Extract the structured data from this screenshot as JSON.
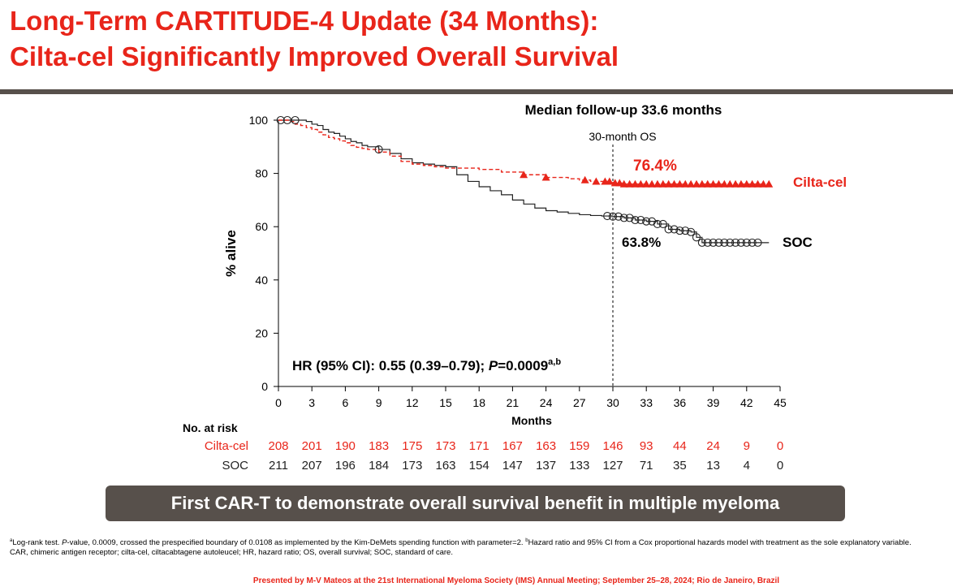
{
  "title": {
    "line1": "Long-Term CARTITUDE-4 Update (34 Months):",
    "line2": "Cilta-cel Significantly Improved Overall Survival"
  },
  "chart_data": {
    "type": "line",
    "title": "Median follow-up 33.6 months",
    "xlabel": "Months",
    "ylabel": "% alive",
    "xlim": [
      0,
      45
    ],
    "ylim": [
      0,
      100
    ],
    "x_ticks": [
      0,
      3,
      6,
      9,
      12,
      15,
      18,
      21,
      24,
      27,
      30,
      33,
      36,
      39,
      42,
      45
    ],
    "y_ticks": [
      0,
      20,
      40,
      60,
      80,
      100
    ],
    "reference_line": {
      "x": 30,
      "label": "30-month OS"
    },
    "hr_text": {
      "prefix": "HR (95% CI): 0.55 (0.39–0.79); ",
      "p_label": "P",
      "p_value": "=0.0009",
      "sup": "a,b"
    },
    "series": [
      {
        "name": "Cilta-cel",
        "color": "#e8251a",
        "line_style": "dashed",
        "marker": "triangle",
        "annotation": "76.4%",
        "x": [
          0,
          1,
          1.5,
          2,
          2.5,
          3,
          3.5,
          4,
          4.5,
          5,
          5.5,
          6,
          6.5,
          7,
          7.5,
          8,
          9,
          10,
          11,
          12,
          13,
          14,
          15,
          16,
          18,
          20,
          22,
          24,
          26,
          27,
          28,
          30,
          31,
          33,
          35,
          37,
          39,
          41,
          43,
          44
        ],
        "y": [
          100,
          99.5,
          98.5,
          98,
          97.2,
          96.5,
          95.5,
          94.5,
          93.5,
          93,
          92.2,
          91.5,
          90.5,
          89.8,
          89.4,
          89,
          88,
          86.5,
          84.5,
          83.5,
          83,
          82.5,
          82,
          82,
          81.5,
          80.5,
          79.5,
          78.5,
          78,
          77.5,
          77,
          76.4,
          76,
          76,
          76,
          76,
          76,
          76,
          76,
          76
        ],
        "censored_x": [
          22,
          24,
          27.5,
          28.5,
          29.3,
          29.7,
          30.2,
          30.6,
          31,
          31.5,
          32,
          32.5,
          33,
          33.5,
          34,
          34.5,
          35,
          35.5,
          36,
          36.5,
          37,
          37.5,
          38,
          38.5,
          39,
          39.5,
          40,
          40.5,
          41,
          41.5,
          42,
          42.5,
          43,
          43.5,
          44
        ]
      },
      {
        "name": "SOC",
        "color": "#222222",
        "line_style": "solid",
        "marker": "circle",
        "annotation": "63.8%",
        "x": [
          0,
          1,
          2,
          2.5,
          3,
          3.5,
          4,
          4.5,
          5,
          5.5,
          6,
          6.5,
          7,
          7.5,
          8,
          9,
          10,
          11,
          12,
          13,
          14,
          15,
          16,
          17,
          18,
          19,
          20,
          21,
          22,
          23,
          24,
          25,
          26,
          27,
          28,
          29,
          30,
          31,
          32,
          33,
          34,
          35,
          36,
          37,
          37.5,
          38,
          39,
          40,
          41,
          42,
          43,
          44
        ],
        "y": [
          100,
          100,
          100,
          99.5,
          98.5,
          98,
          96.5,
          95.5,
          95,
          94,
          93,
          92,
          91.5,
          90.5,
          90,
          89,
          87.5,
          85.5,
          84,
          83.5,
          83,
          82.5,
          79.5,
          77,
          75,
          73.5,
          72,
          70,
          68.5,
          67,
          66,
          65.5,
          65,
          64.5,
          64.2,
          64,
          63.8,
          63.3,
          62.5,
          62,
          61,
          59,
          58.5,
          58,
          56,
          54,
          54,
          54,
          54,
          54,
          54,
          54
        ],
        "censored_x": [
          0.2,
          0.8,
          1.5,
          9,
          29.5,
          30,
          30.5,
          31,
          31.5,
          32,
          32.5,
          33,
          33.5,
          34,
          34.5,
          35,
          35.5,
          36,
          36.5,
          37,
          37.5,
          38,
          38.5,
          39,
          39.5,
          40,
          40.5,
          41,
          41.5,
          42,
          42.5,
          43
        ]
      }
    ],
    "risk_table": {
      "header": "No. at risk",
      "rows": [
        {
          "label": "Cilta-cel",
          "color": "#e8251a",
          "values": [
            208,
            201,
            190,
            183,
            175,
            173,
            171,
            167,
            163,
            159,
            146,
            93,
            44,
            24,
            9,
            0
          ]
        },
        {
          "label": "SOC",
          "color": "#222222",
          "values": [
            211,
            207,
            196,
            184,
            173,
            163,
            154,
            147,
            137,
            133,
            127,
            71,
            35,
            13,
            4,
            0
          ]
        }
      ]
    }
  },
  "banner": "First CAR-T to demonstrate overall survival benefit in multiple myeloma",
  "footnotes": {
    "a_sup": "a",
    "a_pre": "Log-rank test. ",
    "a_p": "P",
    "a_post": "-value, 0.0009, crossed the prespecified boundary of 0.0108 as implemented by the Kim-DeMets spending function with parameter=2. ",
    "b_sup": "b",
    "b_text": "Hazard ratio and 95% CI from a Cox proportional hazards model with treatment as the sole explanatory variable.",
    "abbrev": "CAR, chimeric antigen receptor; cilta-cel, ciltacabtagene autoleucel; HR, hazard ratio; OS, overall survival; SOC, standard of care."
  },
  "presented": "Presented by M-V Mateos at the 21st International Myeloma Society (IMS) Annual Meeting; September 25–28, 2024; Rio de Janeiro, Brazil"
}
